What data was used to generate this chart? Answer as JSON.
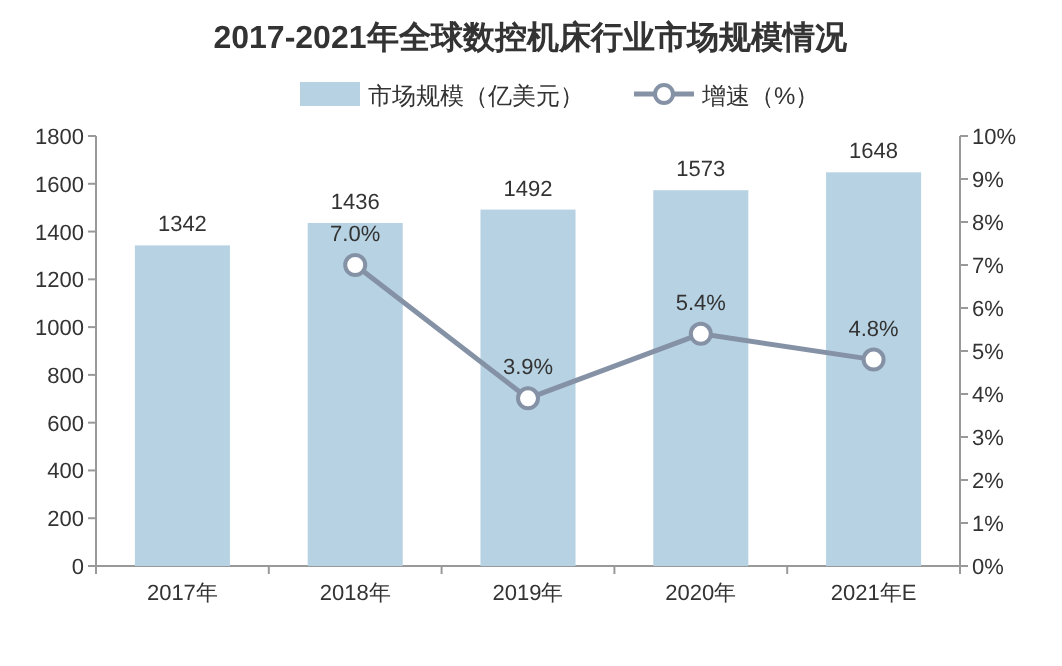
{
  "chart_data": {
    "type": "bar",
    "title": "2017-2021年全球数控机床行业市场规模情况",
    "categories": [
      "2017年",
      "2018年",
      "2019年",
      "2020年",
      "2021年E"
    ],
    "series": [
      {
        "name": "市场规模（亿美元）",
        "color": "#b7d2e3",
        "values": [
          1342,
          1436,
          1492,
          1573,
          1648
        ],
        "value_labels": [
          "1342",
          "1436",
          "1492",
          "1573",
          "1648"
        ]
      },
      {
        "name": "增速（%）",
        "type": "line",
        "axis": "y2",
        "color": "#8592a6",
        "marker": "circle",
        "values": [
          null,
          7.0,
          3.9,
          5.4,
          4.8
        ],
        "value_labels": [
          null,
          "7.0%",
          "3.9%",
          "5.4%",
          "4.8%"
        ]
      }
    ],
    "ylim": [
      0,
      1800
    ],
    "yticks": [
      0,
      200,
      400,
      600,
      800,
      1000,
      1200,
      1400,
      1600,
      1800
    ],
    "y2lim": [
      0,
      10
    ],
    "y2ticks": [
      {
        "value": 0,
        "label": "0%"
      },
      {
        "value": 1,
        "label": "1%"
      },
      {
        "value": 2,
        "label": "2%"
      },
      {
        "value": 3,
        "label": "3%"
      },
      {
        "value": 4,
        "label": "4%"
      },
      {
        "value": 5,
        "label": "5%"
      },
      {
        "value": 6,
        "label": "6%"
      },
      {
        "value": 7,
        "label": "7%"
      },
      {
        "value": 8,
        "label": "8%"
      },
      {
        "value": 9,
        "label": "9%"
      },
      {
        "value": 10,
        "label": "10%"
      }
    ],
    "legend": "top"
  }
}
